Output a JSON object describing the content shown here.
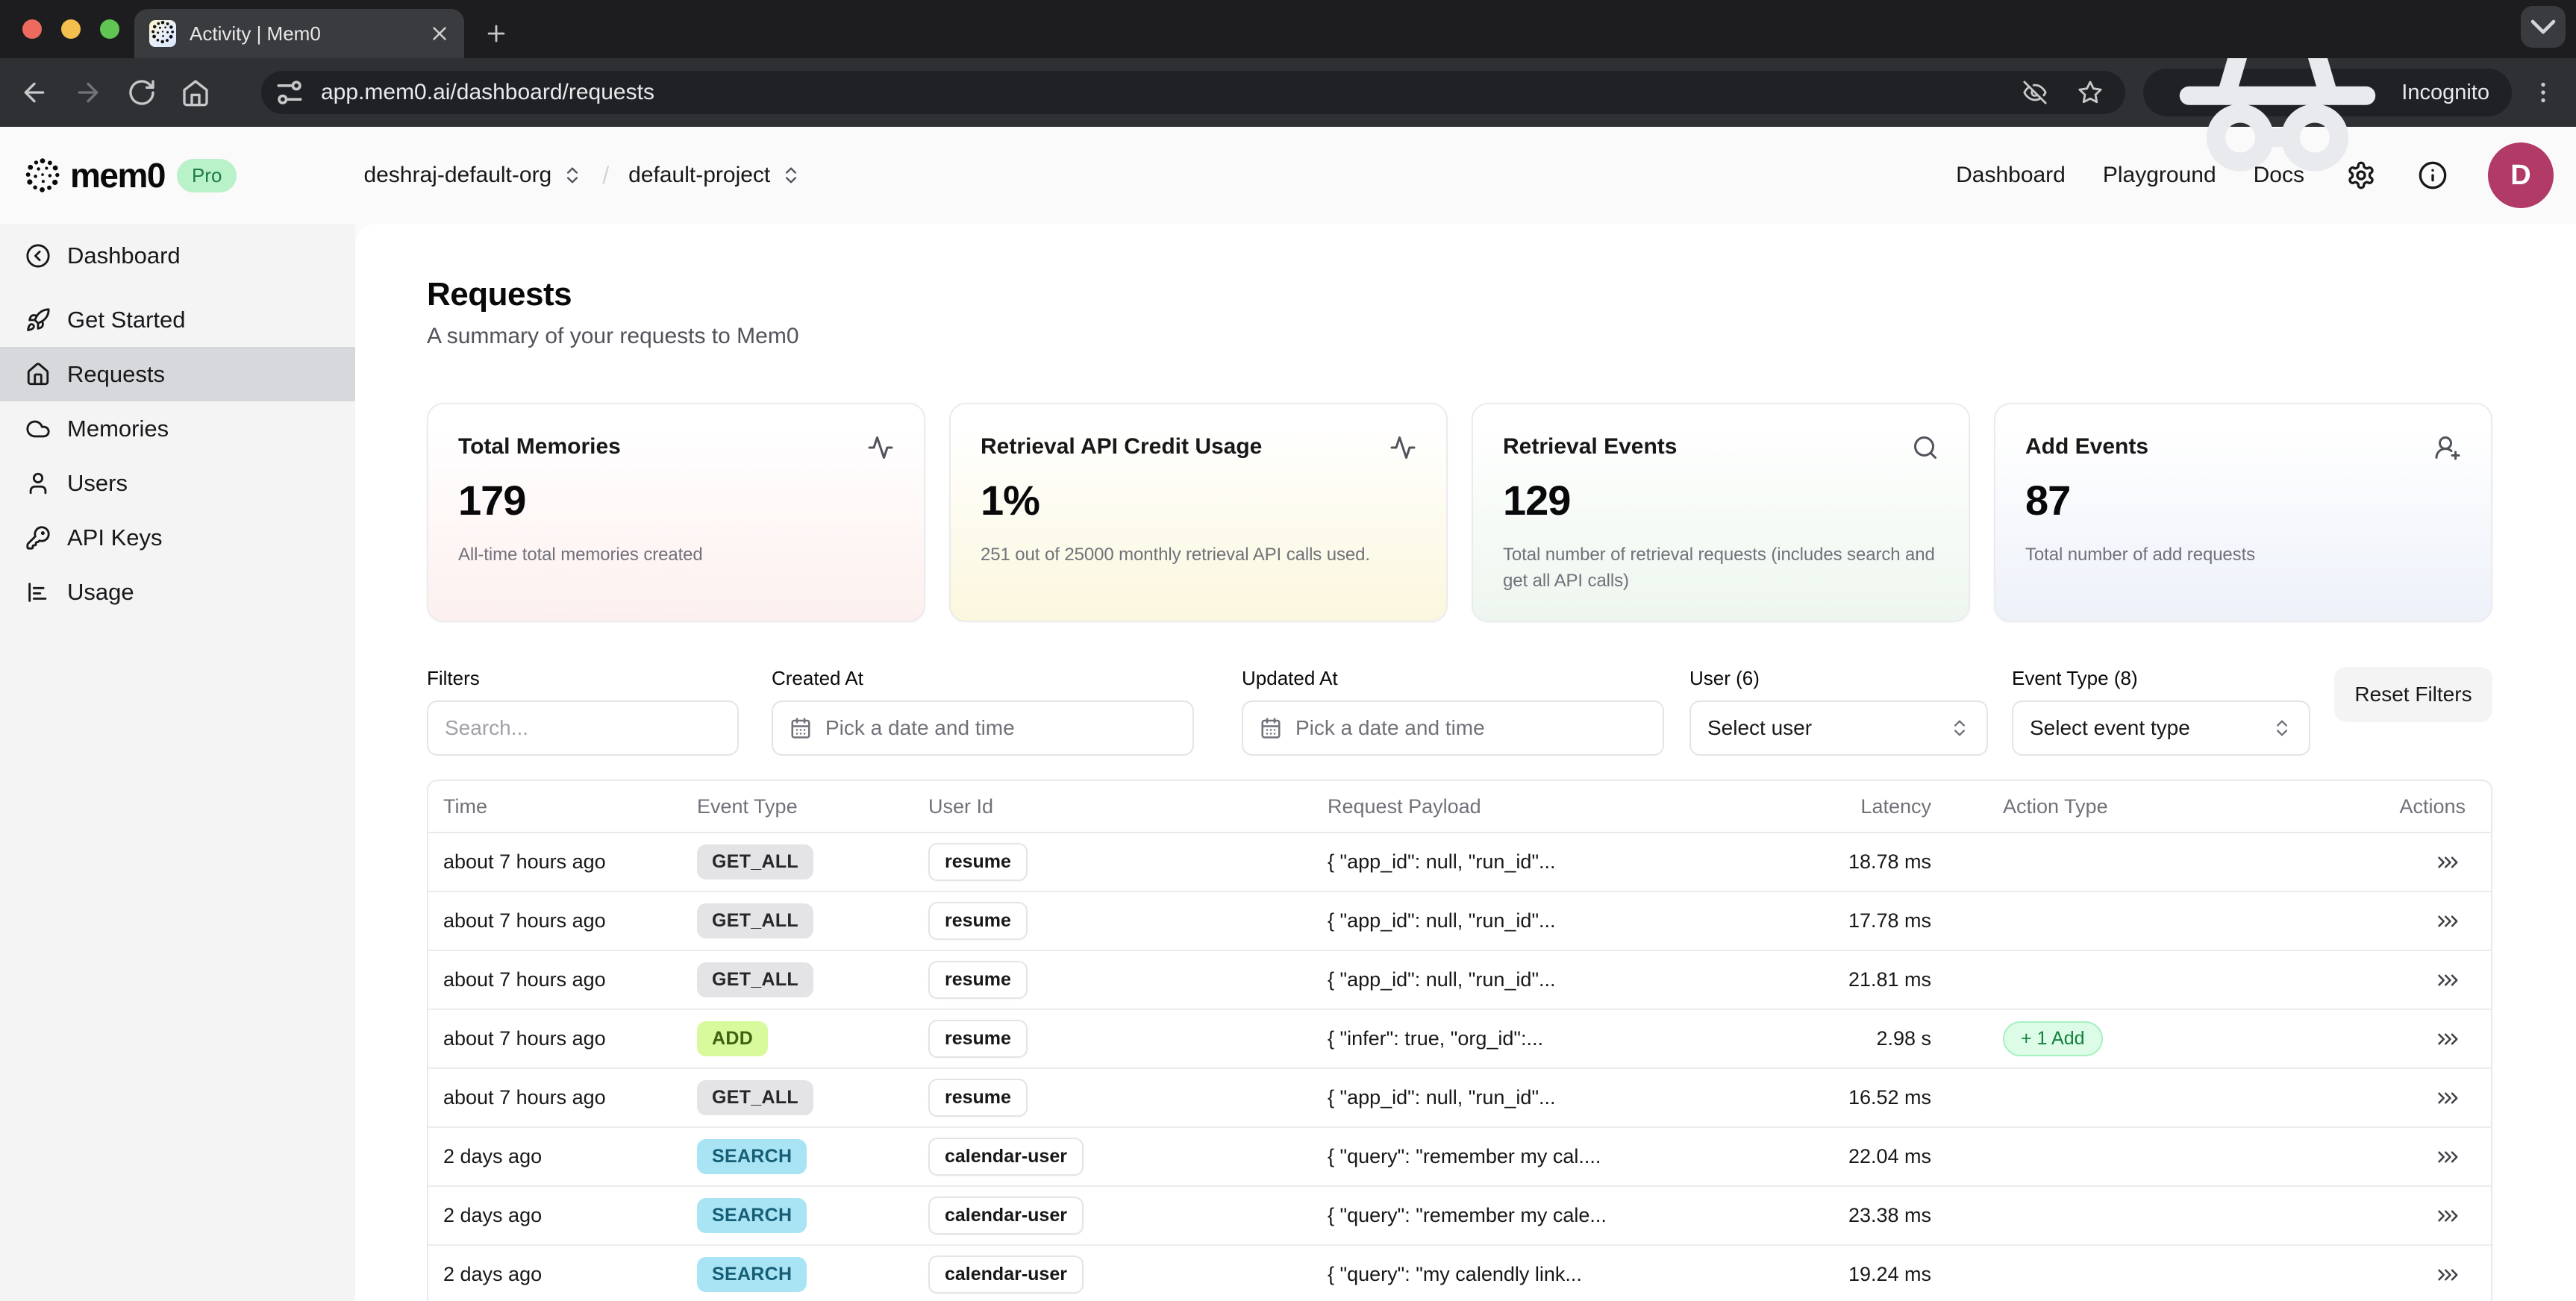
{
  "browser": {
    "tab": {
      "title": "Activity | Mem0"
    },
    "url": "app.mem0.ai/dashboard/requests",
    "incognito": "Incognito"
  },
  "header": {
    "brand": "mem0",
    "plan": "Pro",
    "org": "deshraj-default-org",
    "separator": "/",
    "project": "default-project",
    "nav": [
      {
        "label": "Dashboard"
      },
      {
        "label": "Playground"
      },
      {
        "label": "Docs"
      }
    ],
    "avatar_initial": "D"
  },
  "sidebar": {
    "items": [
      {
        "label": "Dashboard",
        "icon": "circle-chevron-left",
        "active": false,
        "gap_before": false
      },
      {
        "label": "Get Started",
        "icon": "rocket",
        "active": false,
        "gap_before": true
      },
      {
        "label": "Requests",
        "icon": "house",
        "active": true,
        "gap_before": false
      },
      {
        "label": "Memories",
        "icon": "cloud",
        "active": false,
        "gap_before": false
      },
      {
        "label": "Users",
        "icon": "user",
        "active": false,
        "gap_before": false
      },
      {
        "label": "API Keys",
        "icon": "key",
        "active": false,
        "gap_before": false
      },
      {
        "label": "Usage",
        "icon": "chart",
        "active": false,
        "gap_before": false
      }
    ]
  },
  "page": {
    "title": "Requests",
    "subtitle": "A summary of your requests to Mem0"
  },
  "stats": [
    {
      "title": "Total Memories",
      "value": "179",
      "description": "All-time total memories created",
      "icon": "activity",
      "tint": "#fcf0ee"
    },
    {
      "title": "Retrieval API Credit Usage",
      "value": "1%",
      "description": "251 out of 25000 monthly retrieval API calls used.",
      "icon": "activity",
      "tint": "#fbf7dd"
    },
    {
      "title": "Retrieval Events",
      "value": "129",
      "description": "Total number of retrieval requests (includes search and get all API calls)",
      "icon": "search",
      "tint": "#edf6ee"
    },
    {
      "title": "Add Events",
      "value": "87",
      "description": "Total number of add requests",
      "icon": "user-plus",
      "tint": "#edf1f9"
    }
  ],
  "filters": {
    "search_label": "Filters",
    "search_placeholder": "Search...",
    "created_label": "Created At",
    "updated_label": "Updated At",
    "date_placeholder": "Pick a date and time",
    "user_label": "User (6)",
    "user_placeholder": "Select user",
    "event_label": "Event Type (8)",
    "event_placeholder": "Select event type",
    "reset_label": "Reset Filters"
  },
  "table": {
    "columns": [
      "Time",
      "Event Type",
      "User Id",
      "Request Payload",
      "Latency",
      "Action Type",
      "Actions"
    ],
    "rows": [
      {
        "time": "about 7 hours ago",
        "event": "GET_ALL",
        "user": "resume",
        "payload": "{ \"app_id\": null, \"run_id\"...",
        "latency": "18.78 ms",
        "action": null
      },
      {
        "time": "about 7 hours ago",
        "event": "GET_ALL",
        "user": "resume",
        "payload": "{ \"app_id\": null, \"run_id\"...",
        "latency": "17.78 ms",
        "action": null
      },
      {
        "time": "about 7 hours ago",
        "event": "GET_ALL",
        "user": "resume",
        "payload": "{ \"app_id\": null, \"run_id\"...",
        "latency": "21.81 ms",
        "action": null
      },
      {
        "time": "about 7 hours ago",
        "event": "ADD",
        "user": "resume",
        "payload": "{ \"infer\": true, \"org_id\":...",
        "latency": "2.98 s",
        "action": "+ 1 Add"
      },
      {
        "time": "about 7 hours ago",
        "event": "GET_ALL",
        "user": "resume",
        "payload": "{ \"app_id\": null, \"run_id\"...",
        "latency": "16.52 ms",
        "action": null
      },
      {
        "time": "2 days ago",
        "event": "SEARCH",
        "user": "calendar-user",
        "payload": "{ \"query\": \"remember my cal....",
        "latency": "22.04 ms",
        "action": null
      },
      {
        "time": "2 days ago",
        "event": "SEARCH",
        "user": "calendar-user",
        "payload": "{ \"query\": \"remember my cale...",
        "latency": "23.38 ms",
        "action": null
      },
      {
        "time": "2 days ago",
        "event": "SEARCH",
        "user": "calendar-user",
        "payload": "{ \"query\": \"my calendly link...",
        "latency": "19.24 ms",
        "action": null
      }
    ]
  },
  "palette": {
    "avatar_bg": "#b13a67",
    "pro_badge": {
      "bg": "#b9f1c8",
      "text": "#1c7c45"
    },
    "event_badges": {
      "GET_ALL": {
        "bg": "#e4e4e7",
        "text": "#27272a"
      },
      "ADD": {
        "bg": "#d9f99d",
        "text": "#3f6212"
      },
      "SEARCH": {
        "bg": "#a9e4f5",
        "text": "#155e75"
      }
    },
    "action_add": {
      "bg": "#dcfce7",
      "border": "#a7f0c0",
      "text": "#15803d"
    }
  }
}
